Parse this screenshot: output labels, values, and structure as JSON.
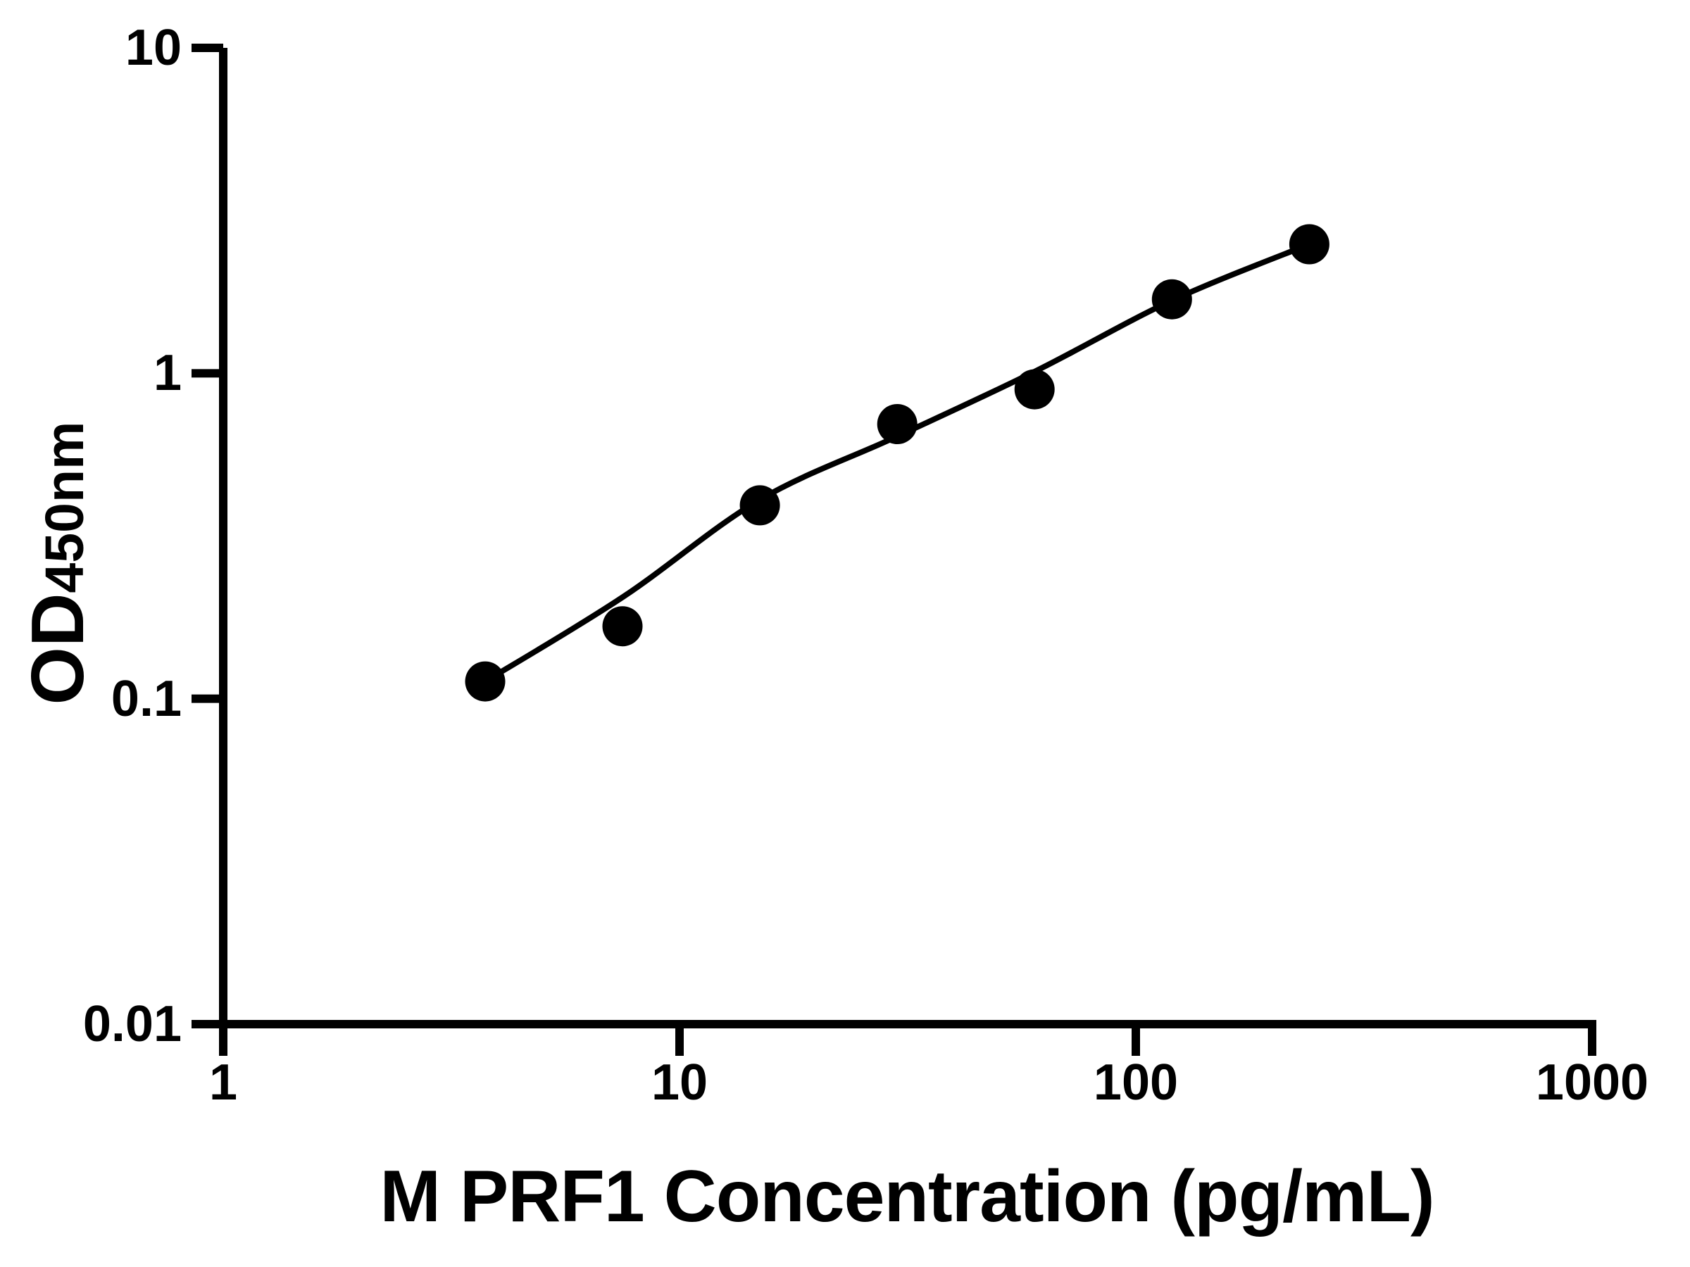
{
  "chart_data": {
    "type": "scatter",
    "title": "",
    "xlabel": "M PRF1 Concentration (pg/mL)",
    "ylabel_main": "OD",
    "ylabel_sub": "450nm",
    "x_scale": "log",
    "y_scale": "log",
    "xlim": [
      1,
      1000
    ],
    "ylim": [
      0.01,
      10
    ],
    "grid": false,
    "legend": false,
    "axis_color": "#000000",
    "marker_color": "#000000",
    "curve_color": "#000000",
    "background": "#ffffff",
    "x_ticks": [
      {
        "value": 1,
        "label": "1"
      },
      {
        "value": 10,
        "label": "10"
      },
      {
        "value": 100,
        "label": "100"
      },
      {
        "value": 1000,
        "label": "1000"
      }
    ],
    "y_ticks": [
      {
        "value": 10,
        "label": "10"
      },
      {
        "value": 1,
        "label": "1"
      },
      {
        "value": 0.1,
        "label": "0.1"
      },
      {
        "value": 0.01,
        "label": "0.01"
      }
    ],
    "series": [
      {
        "name": "standard-points",
        "marker": "filled-circle",
        "points": [
          {
            "x": 3.75,
            "y": 0.113
          },
          {
            "x": 7.5,
            "y": 0.167
          },
          {
            "x": 15,
            "y": 0.393
          },
          {
            "x": 30,
            "y": 0.698
          },
          {
            "x": 60,
            "y": 0.893
          },
          {
            "x": 120,
            "y": 1.688
          },
          {
            "x": 240,
            "y": 2.492
          }
        ]
      }
    ],
    "fit_curve": {
      "name": "fitted-standard-curve",
      "points": [
        {
          "x": 3.75,
          "y": 0.113
        },
        {
          "x": 7.5,
          "y": 0.205
        },
        {
          "x": 15,
          "y": 0.409
        },
        {
          "x": 30,
          "y": 0.64
        },
        {
          "x": 60,
          "y": 1.012
        },
        {
          "x": 120,
          "y": 1.674
        },
        {
          "x": 240,
          "y": 2.492
        }
      ]
    }
  }
}
